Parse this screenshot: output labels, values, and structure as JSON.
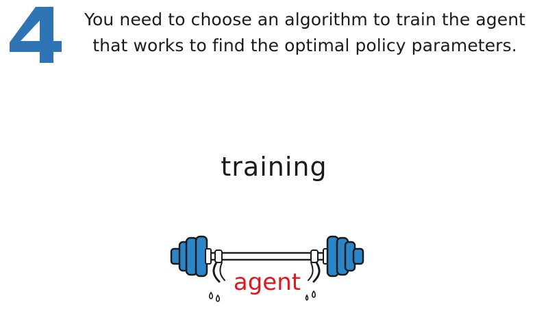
{
  "step": {
    "number": "4",
    "color": "#2f74b5"
  },
  "caption": {
    "line1": "You need to choose an algorithm to train the agent",
    "line2": "that works to find the optimal policy parameters."
  },
  "illustration": {
    "label": "training",
    "character": "agent",
    "character_color": "#e8141d",
    "weight_color": "#2a86c8",
    "icon": "barbell-icon"
  }
}
